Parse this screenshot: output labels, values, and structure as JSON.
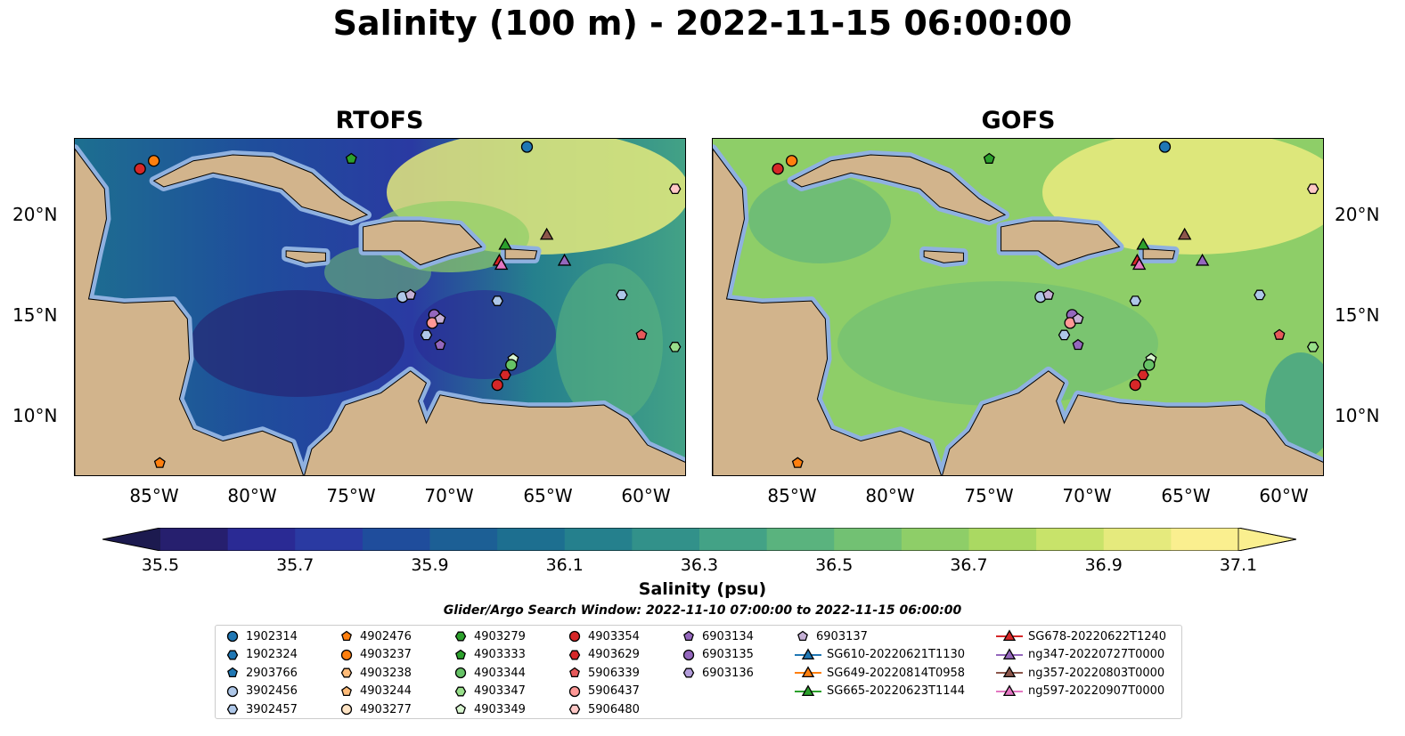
{
  "title": "Salinity (100 m) - 2022-11-15 06:00:00",
  "panels": [
    {
      "title": "RTOFS",
      "id": "rtofs"
    },
    {
      "title": "GOFS",
      "id": "gofs"
    }
  ],
  "lat_labels": [
    "20°N",
    "15°N",
    "10°N"
  ],
  "lon_labels": [
    "85°W",
    "80°W",
    "75°W",
    "70°W",
    "65°W",
    "60°W"
  ],
  "colorbar": {
    "label": "Salinity (psu)",
    "ticks": [
      "35.5",
      "35.7",
      "35.9",
      "36.1",
      "36.3",
      "36.5",
      "36.7",
      "36.9",
      "37.1"
    ],
    "colors": [
      "#261f6e",
      "#2a2a94",
      "#2a3aa2",
      "#1f4d9c",
      "#1c5f95",
      "#1d6f90",
      "#25808d",
      "#32918a",
      "#43a286",
      "#5ab37e",
      "#72c173",
      "#8ece68",
      "#aad962",
      "#c8e36a",
      "#e5ea7d",
      "#faef8f"
    ]
  },
  "search_window": "Glider/Argo Search Window: 2022-11-10 07:00:00 to 2022-11-15 06:00:00",
  "legend": [
    {
      "label": "1902314",
      "marker": "circle",
      "color": "#1f77b4"
    },
    {
      "label": "1902324",
      "marker": "hexagon",
      "color": "#1f77b4"
    },
    {
      "label": "2903766",
      "marker": "pentagon",
      "color": "#1f77b4"
    },
    {
      "label": "3902456",
      "marker": "circle",
      "color": "#aec7e8"
    },
    {
      "label": "3902457",
      "marker": "hexagon",
      "color": "#aec7e8"
    },
    {
      "label": "4902476",
      "marker": "pentagon",
      "color": "#ff7f0e"
    },
    {
      "label": "4903237",
      "marker": "circle",
      "color": "#ff7f0e"
    },
    {
      "label": "4903238",
      "marker": "hexagon",
      "color": "#ffbb78"
    },
    {
      "label": "4903244",
      "marker": "pentagon",
      "color": "#ffbb78"
    },
    {
      "label": "4903277",
      "marker": "circle",
      "color": "#ffe4c4"
    },
    {
      "label": "4903279",
      "marker": "hexagon",
      "color": "#2ca02c"
    },
    {
      "label": "4903333",
      "marker": "pentagon",
      "color": "#2ca02c"
    },
    {
      "label": "4903344",
      "marker": "circle",
      "color": "#66c266"
    },
    {
      "label": "4903347",
      "marker": "hexagon",
      "color": "#98df8a"
    },
    {
      "label": "4903349",
      "marker": "pentagon",
      "color": "#d8f5d0"
    },
    {
      "label": "4903354",
      "marker": "circle",
      "color": "#d62728"
    },
    {
      "label": "4903629",
      "marker": "hexagon",
      "color": "#d62728"
    },
    {
      "label": "5906339",
      "marker": "pentagon",
      "color": "#e6595a"
    },
    {
      "label": "5906437",
      "marker": "circle",
      "color": "#ff9896"
    },
    {
      "label": "5906480",
      "marker": "hexagon",
      "color": "#ffc8c6"
    },
    {
      "label": "6903134",
      "marker": "pentagon",
      "color": "#9467bd"
    },
    {
      "label": "6903135",
      "marker": "circle",
      "color": "#9467bd"
    },
    {
      "label": "6903136",
      "marker": "hexagon",
      "color": "#b39ddb"
    },
    {
      "label": "6903137",
      "marker": "pentagon",
      "color": "#c5b0d5"
    },
    {
      "label": "SG610-20220621T1130",
      "marker": "triangle",
      "color": "#1f77b4"
    },
    {
      "label": "SG649-20220814T0958",
      "marker": "triangle",
      "color": "#ff7f0e"
    },
    {
      "label": "SG665-20220623T1144",
      "marker": "triangle",
      "color": "#2ca02c"
    },
    {
      "label": "SG678-20220622T1240",
      "marker": "triangle",
      "color": "#d62728"
    },
    {
      "label": "ng347-20220727T0000",
      "marker": "triangle",
      "color": "#9467bd"
    },
    {
      "label": "ng357-20220803T0000",
      "marker": "triangle",
      "color": "#8c564b"
    },
    {
      "label": "ng597-20220907T0000",
      "marker": "triangle",
      "color": "#e377c2"
    }
  ],
  "platforms": [
    {
      "lon": -85.7,
      "lat": 22.5,
      "legend": 15
    },
    {
      "lon": -85.0,
      "lat": 22.9,
      "legend": 6
    },
    {
      "lon": -66.1,
      "lat": 23.6,
      "legend": 0
    },
    {
      "lon": -75.0,
      "lat": 23.0,
      "legend": 11
    },
    {
      "lon": -58.6,
      "lat": 21.5,
      "legend": 19
    },
    {
      "lon": -84.7,
      "lat": 7.8,
      "legend": 5
    },
    {
      "lon": -72.4,
      "lat": 16.1,
      "legend": 3
    },
    {
      "lon": -72.0,
      "lat": 16.2,
      "legend": 23
    },
    {
      "lon": -70.8,
      "lat": 15.2,
      "legend": 21
    },
    {
      "lon": -70.9,
      "lat": 14.8,
      "legend": 18
    },
    {
      "lon": -70.5,
      "lat": 15.0,
      "legend": 23
    },
    {
      "lon": -71.2,
      "lat": 14.2,
      "legend": 4
    },
    {
      "lon": -70.5,
      "lat": 13.7,
      "legend": 20
    },
    {
      "lon": -67.6,
      "lat": 15.9,
      "legend": 4
    },
    {
      "lon": -66.8,
      "lat": 13.0,
      "legend": 14
    },
    {
      "lon": -66.9,
      "lat": 12.7,
      "legend": 12
    },
    {
      "lon": -67.6,
      "lat": 11.7,
      "legend": 15
    },
    {
      "lon": -67.2,
      "lat": 12.2,
      "legend": 16
    },
    {
      "lon": -60.3,
      "lat": 14.2,
      "legend": 17
    },
    {
      "lon": -58.6,
      "lat": 13.6,
      "legend": 13
    },
    {
      "lon": -61.3,
      "lat": 16.2,
      "legend": 4
    },
    {
      "lon": -67.2,
      "lat": 18.7,
      "legend": 26
    },
    {
      "lon": -67.5,
      "lat": 17.9,
      "legend": 27
    },
    {
      "lon": -67.4,
      "lat": 17.7,
      "legend": 30
    },
    {
      "lon": -65.1,
      "lat": 19.2,
      "legend": 29
    },
    {
      "lon": -64.2,
      "lat": 17.9,
      "legend": 28
    }
  ]
}
